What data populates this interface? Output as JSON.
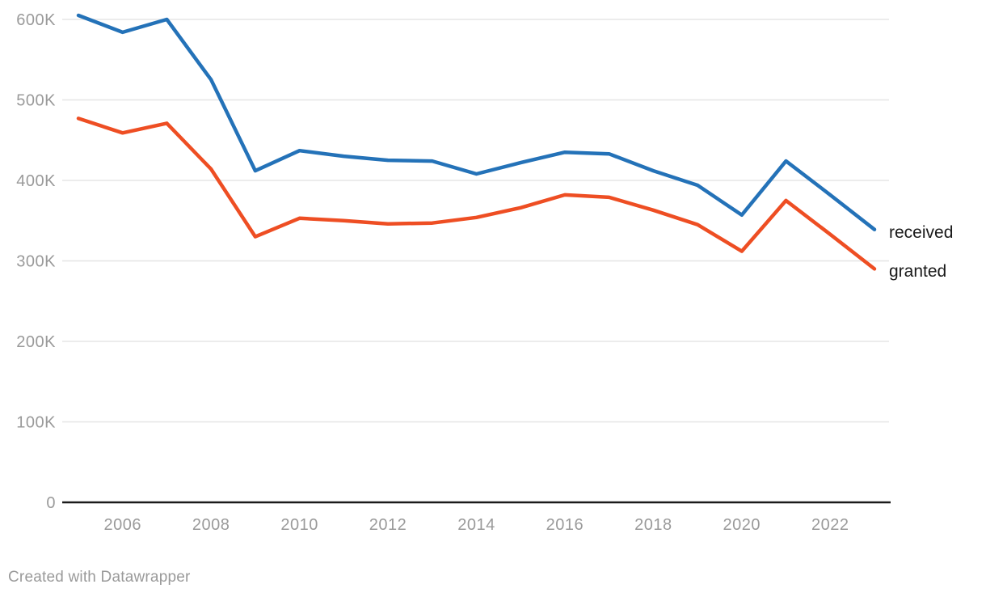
{
  "chart_data": {
    "type": "line",
    "x": [
      2005,
      2006,
      2007,
      2008,
      2009,
      2010,
      2011,
      2012,
      2013,
      2014,
      2015,
      2016,
      2017,
      2018,
      2019,
      2020,
      2021,
      2022,
      2023
    ],
    "series": [
      {
        "name": "received",
        "color": "#2472b8",
        "values": [
          605000,
          584000,
          600000,
          525000,
          412000,
          437000,
          430000,
          425000,
          424000,
          408000,
          422000,
          435000,
          433000,
          412000,
          394000,
          357000,
          424000,
          382000,
          339000
        ]
      },
      {
        "name": "granted",
        "color": "#ee4e23",
        "values": [
          477000,
          459000,
          471000,
          414000,
          330000,
          353000,
          350000,
          346000,
          347000,
          354000,
          366000,
          382000,
          379000,
          363000,
          345000,
          312000,
          375000,
          333000,
          290000
        ]
      }
    ],
    "title": "",
    "xlabel": "",
    "ylabel": "",
    "ylim": [
      0,
      600000
    ],
    "yticks": [
      {
        "value": 0,
        "label": "0"
      },
      {
        "value": 100000,
        "label": "100K"
      },
      {
        "value": 200000,
        "label": "200K"
      },
      {
        "value": 300000,
        "label": "300K"
      },
      {
        "value": 400000,
        "label": "400K"
      },
      {
        "value": 500000,
        "label": "500K"
      },
      {
        "value": 600000,
        "label": "600K"
      }
    ],
    "xticks": [
      {
        "value": 2006,
        "label": "2006"
      },
      {
        "value": 2008,
        "label": "2008"
      },
      {
        "value": 2010,
        "label": "2010"
      },
      {
        "value": 2012,
        "label": "2012"
      },
      {
        "value": 2014,
        "label": "2014"
      },
      {
        "value": 2016,
        "label": "2016"
      },
      {
        "value": 2018,
        "label": "2018"
      },
      {
        "value": 2020,
        "label": "2020"
      },
      {
        "value": 2022,
        "label": "2022"
      }
    ],
    "grid": true,
    "legend_position": "direct-end-labels"
  },
  "colors": {
    "background": "#ffffff",
    "gridline": "#e5e5e5",
    "axis_line": "#1a1a1a",
    "tick_text": "#9a9a9a",
    "series_label_text": "#1a1a1a"
  },
  "footer": {
    "credit": "Created with Datawrapper"
  }
}
